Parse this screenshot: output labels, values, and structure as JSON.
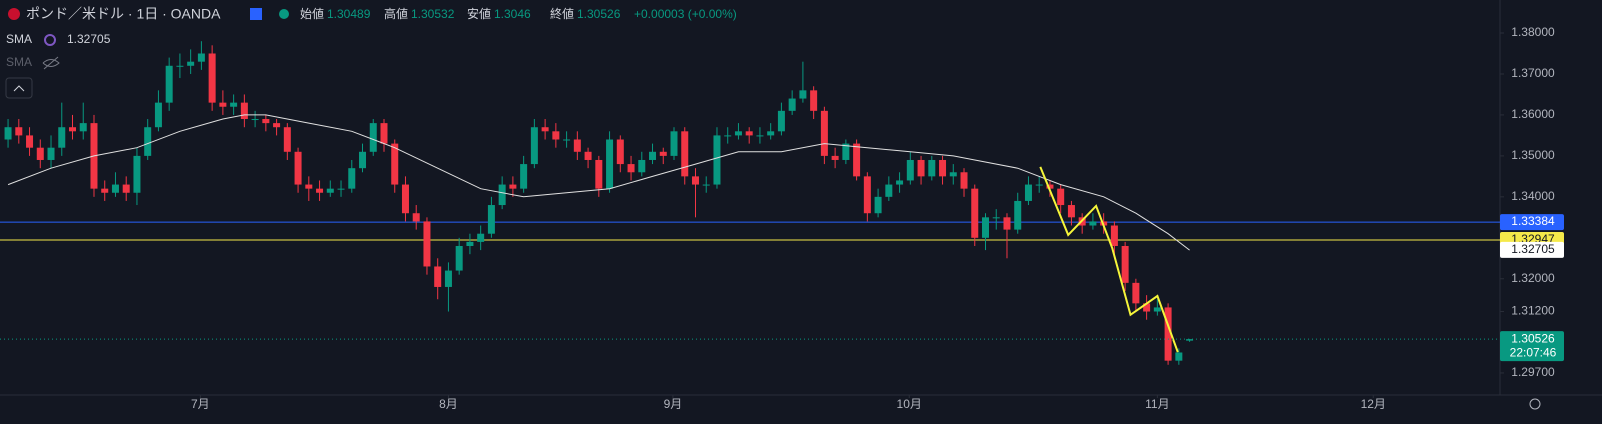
{
  "header": {
    "symbol": "ポンド／米ドル · 1日 · OANDA",
    "open_label": "始値",
    "high_label": "高値",
    "low_label": "安値",
    "close_label": "終値",
    "change": "+0.00003 (+0.00%)",
    "legend_sma_hidden": "SMA"
  },
  "chart_data": {
    "type": "candlestick",
    "up_color": "#089981",
    "down_color": "#f23645",
    "open": [
      1.354,
      1.357,
      1.355,
      1.352,
      1.349,
      1.352,
      1.357,
      1.356,
      1.358,
      1.342,
      1.341,
      1.343,
      1.341,
      1.35,
      1.357,
      1.363,
      1.372,
      1.372,
      1.373,
      1.375,
      1.363,
      1.362,
      1.363,
      1.359,
      1.359,
      1.358,
      1.357,
      1.351,
      1.343,
      1.342,
      1.341,
      1.342,
      1.342,
      1.347,
      1.351,
      1.358,
      1.353,
      1.343,
      1.336,
      1.334,
      1.323,
      1.318,
      1.322,
      1.328,
      1.329,
      1.331,
      1.338,
      1.343,
      1.342,
      1.348,
      1.357,
      1.356,
      1.354,
      1.354,
      1.351,
      1.349,
      1.342,
      1.354,
      1.348,
      1.346,
      1.349,
      1.351,
      1.35,
      1.356,
      1.345,
      1.343,
      1.343,
      1.355,
      1.355,
      1.356,
      1.355,
      1.355,
      1.356,
      1.361,
      1.364,
      1.366,
      1.361,
      1.35,
      1.349,
      1.353,
      1.345,
      1.336,
      1.34,
      1.343,
      1.344,
      1.349,
      1.345,
      1.349,
      1.345,
      1.346,
      1.342,
      1.33,
      1.335,
      1.335,
      1.332,
      1.339,
      1.343,
      1.343,
      1.342,
      1.338,
      1.335,
      1.333,
      1.334,
      1.333,
      1.328,
      1.319,
      1.314,
      1.312,
      1.313,
      1.3,
      1.30489
    ],
    "high": [
      1.359,
      1.359,
      1.357,
      1.354,
      1.355,
      1.363,
      1.36,
      1.363,
      1.36,
      1.344,
      1.346,
      1.345,
      1.352,
      1.359,
      1.366,
      1.374,
      1.375,
      1.376,
      1.378,
      1.377,
      1.366,
      1.365,
      1.365,
      1.361,
      1.36,
      1.359,
      1.358,
      1.352,
      1.345,
      1.344,
      1.344,
      1.344,
      1.349,
      1.353,
      1.359,
      1.359,
      1.354,
      1.345,
      1.338,
      1.335,
      1.325,
      1.324,
      1.33,
      1.331,
      1.333,
      1.34,
      1.345,
      1.345,
      1.35,
      1.359,
      1.359,
      1.358,
      1.356,
      1.356,
      1.352,
      1.35,
      1.356,
      1.355,
      1.35,
      1.351,
      1.353,
      1.352,
      1.357,
      1.357,
      1.347,
      1.345,
      1.357,
      1.357,
      1.358,
      1.357,
      1.357,
      1.358,
      1.363,
      1.366,
      1.373,
      1.367,
      1.362,
      1.352,
      1.354,
      1.354,
      1.346,
      1.342,
      1.345,
      1.346,
      1.351,
      1.35,
      1.35,
      1.35,
      1.348,
      1.347,
      1.343,
      1.336,
      1.337,
      1.336,
      1.341,
      1.345,
      1.345,
      1.344,
      1.343,
      1.339,
      1.336,
      1.336,
      1.336,
      1.334,
      1.329,
      1.32,
      1.316,
      1.315,
      1.314,
      1.303,
      1.30532
    ],
    "low": [
      1.352,
      1.353,
      1.35,
      1.347,
      1.347,
      1.35,
      1.354,
      1.354,
      1.34,
      1.339,
      1.34,
      1.339,
      1.338,
      1.349,
      1.356,
      1.361,
      1.369,
      1.37,
      1.371,
      1.361,
      1.36,
      1.36,
      1.357,
      1.357,
      1.356,
      1.355,
      1.349,
      1.341,
      1.339,
      1.339,
      1.34,
      1.34,
      1.341,
      1.346,
      1.35,
      1.351,
      1.341,
      1.334,
      1.332,
      1.321,
      1.315,
      1.312,
      1.321,
      1.326,
      1.327,
      1.33,
      1.337,
      1.34,
      1.341,
      1.347,
      1.354,
      1.352,
      1.352,
      1.349,
      1.347,
      1.34,
      1.341,
      1.346,
      1.344,
      1.345,
      1.348,
      1.348,
      1.349,
      1.343,
      1.335,
      1.341,
      1.342,
      1.353,
      1.354,
      1.353,
      1.353,
      1.354,
      1.355,
      1.36,
      1.363,
      1.359,
      1.348,
      1.347,
      1.348,
      1.344,
      1.334,
      1.335,
      1.339,
      1.341,
      1.343,
      1.343,
      1.344,
      1.343,
      1.343,
      1.34,
      1.328,
      1.327,
      1.332,
      1.325,
      1.331,
      1.338,
      1.341,
      1.34,
      1.336,
      1.333,
      1.331,
      1.332,
      1.331,
      1.326,
      1.317,
      1.312,
      1.31,
      1.311,
      1.299,
      1.299,
      1.3046
    ],
    "close": [
      1.357,
      1.355,
      1.352,
      1.349,
      1.352,
      1.357,
      1.356,
      1.358,
      1.342,
      1.341,
      1.343,
      1.341,
      1.35,
      1.357,
      1.363,
      1.372,
      1.372,
      1.373,
      1.375,
      1.363,
      1.362,
      1.363,
      1.359,
      1.359,
      1.358,
      1.357,
      1.351,
      1.343,
      1.342,
      1.341,
      1.342,
      1.342,
      1.347,
      1.351,
      1.358,
      1.353,
      1.343,
      1.336,
      1.334,
      1.323,
      1.318,
      1.322,
      1.328,
      1.329,
      1.331,
      1.338,
      1.343,
      1.342,
      1.348,
      1.357,
      1.356,
      1.354,
      1.354,
      1.351,
      1.349,
      1.342,
      1.354,
      1.348,
      1.346,
      1.349,
      1.351,
      1.35,
      1.356,
      1.345,
      1.343,
      1.343,
      1.355,
      1.355,
      1.356,
      1.355,
      1.355,
      1.356,
      1.361,
      1.364,
      1.366,
      1.361,
      1.35,
      1.349,
      1.353,
      1.345,
      1.336,
      1.34,
      1.343,
      1.344,
      1.349,
      1.345,
      1.349,
      1.345,
      1.346,
      1.342,
      1.33,
      1.335,
      1.335,
      1.332,
      1.339,
      1.343,
      1.343,
      1.342,
      1.338,
      1.335,
      1.333,
      1.334,
      1.333,
      1.328,
      1.319,
      1.314,
      1.312,
      1.313,
      1.3,
      1.302,
      1.30526
    ],
    "xlim": [
      -0.75,
      138.9
    ],
    "ylim": [
      1.29162,
      1.38806
    ],
    "yticks": [
      {
        "value": 1.38,
        "label": "1.38000"
      },
      {
        "value": 1.37,
        "label": "1.37000"
      },
      {
        "value": 1.36,
        "label": "1.36000"
      },
      {
        "value": 1.35,
        "label": "1.35000"
      },
      {
        "value": 1.34,
        "label": "1.34000"
      },
      {
        "value": 1.32,
        "label": "1.32000"
      },
      {
        "value": 1.312,
        "label": "1.31200"
      },
      {
        "value": 1.297,
        "label": "1.29700"
      }
    ],
    "xticks": [
      {
        "value": 17.9,
        "label": "7月"
      },
      {
        "value": 41,
        "label": "8月"
      },
      {
        "value": 61.9,
        "label": "9月"
      },
      {
        "value": 83.9,
        "label": "10月"
      },
      {
        "value": 107,
        "label": "11月"
      },
      {
        "value": 127.1,
        "label": "12月"
      }
    ],
    "sma": {
      "name": "SMA",
      "color": "#e0e0e0",
      "current": 1.32705,
      "x": [
        0,
        4,
        8,
        12,
        16,
        20,
        22,
        24,
        28,
        32,
        36,
        40,
        44,
        48,
        52,
        56,
        60,
        64,
        68,
        72,
        76,
        80,
        84,
        88,
        90,
        94,
        98,
        102,
        105,
        108,
        110
      ],
      "values": [
        1.343,
        1.347,
        1.35,
        1.352,
        1.356,
        1.359,
        1.36,
        1.36,
        1.358,
        1.356,
        1.352,
        1.347,
        1.342,
        1.34,
        1.341,
        1.342,
        1.345,
        1.348,
        1.351,
        1.351,
        1.353,
        1.352,
        1.351,
        1.35,
        1.349,
        1.347,
        1.343,
        1.34,
        1.336,
        1.331,
        1.327
      ]
    },
    "hlines": [
      {
        "value": 1.33384,
        "color": "#2962ff"
      },
      {
        "value": 1.32947,
        "color": "#f5e94a"
      }
    ],
    "drawing": {
      "color": "#f5f53a",
      "x": [
        96.1,
        98.7,
        101.3,
        102.8,
        104.5,
        107,
        108.9
      ],
      "values": [
        1.3473,
        1.3307,
        1.3378,
        1.3275,
        1.3112,
        1.3158,
        1.3021
      ]
    },
    "countdown": "22:07:46"
  }
}
